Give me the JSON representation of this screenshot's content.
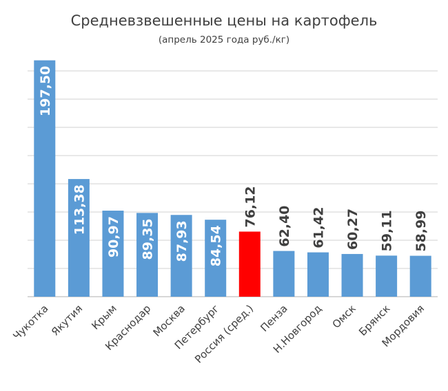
{
  "chart_data": {
    "type": "bar",
    "title": "Средневзвешенные цены на картофель",
    "subtitle": "(апрель 2025 года руб./кг)",
    "xlabel": "",
    "ylabel": "",
    "categories": [
      "Чукотка",
      "Якутия",
      "Крым",
      "Краснодар",
      "Москва",
      "Петербург",
      "Россия (сред.)",
      "Пенза",
      "Н.Новгород",
      "Омск",
      "Брянск",
      "Мордовия"
    ],
    "values": [
      197.5,
      113.38,
      90.97,
      89.35,
      87.93,
      84.54,
      76.12,
      62.4,
      61.42,
      60.27,
      59.11,
      58.99
    ],
    "value_labels": [
      "197,50",
      "113,38",
      "90,97",
      "89,35",
      "87,93",
      "84,54",
      "76,12",
      "62,40",
      "61,42",
      "60,27",
      "59,11",
      "58,99"
    ],
    "ylim": [
      30,
      190
    ],
    "grid_step": 20,
    "grid": true,
    "y_tick_labels_shown": false,
    "legend": "none",
    "colors": {
      "bar": "#5b9bd5",
      "highlight": "#ff0000",
      "highlight_category": "Россия (сред.)",
      "grid": "#d9d9d9",
      "label_inside": "#ffffff",
      "label_outside": "#404040"
    }
  }
}
